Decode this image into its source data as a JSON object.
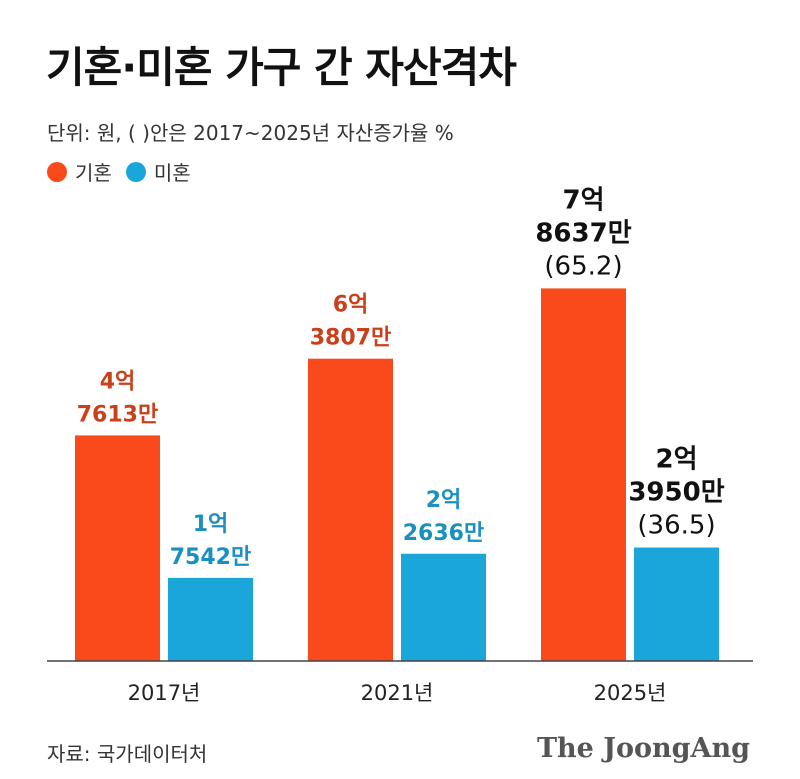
{
  "title": "기혼·미혼 가구 간 자산격차",
  "subtitle": "단위: 원, ( )안은 2017~2025년 자산증가율 %",
  "source": "자료: 국가데이터처",
  "publisher": "The JoongAng",
  "colors": {
    "married": "#fa4a1c",
    "single": "#1aa6d8",
    "married_label": "#c9401a",
    "single_label": "#1a8fc0",
    "final_label": "#111111"
  },
  "chart_data": {
    "type": "bar",
    "categories": [
      "2017년",
      "2021년",
      "2025년"
    ],
    "series": [
      {
        "name": "기혼",
        "values": [
          47613,
          63807,
          78637
        ],
        "labels": [
          [
            "4억",
            "7613만"
          ],
          [
            "6억",
            "3807만"
          ],
          [
            "7억",
            "8637만",
            "(65.2)"
          ]
        ]
      },
      {
        "name": "미혼",
        "values": [
          17542,
          22636,
          23950
        ],
        "labels": [
          [
            "1억",
            "7542만"
          ],
          [
            "2억",
            "2636만"
          ],
          [
            "2억",
            "3950만",
            "(36.5)"
          ]
        ]
      }
    ],
    "value_unit": "만원",
    "ylim": [
      0,
      100000
    ],
    "grid": false,
    "legend_position": "top-left"
  }
}
